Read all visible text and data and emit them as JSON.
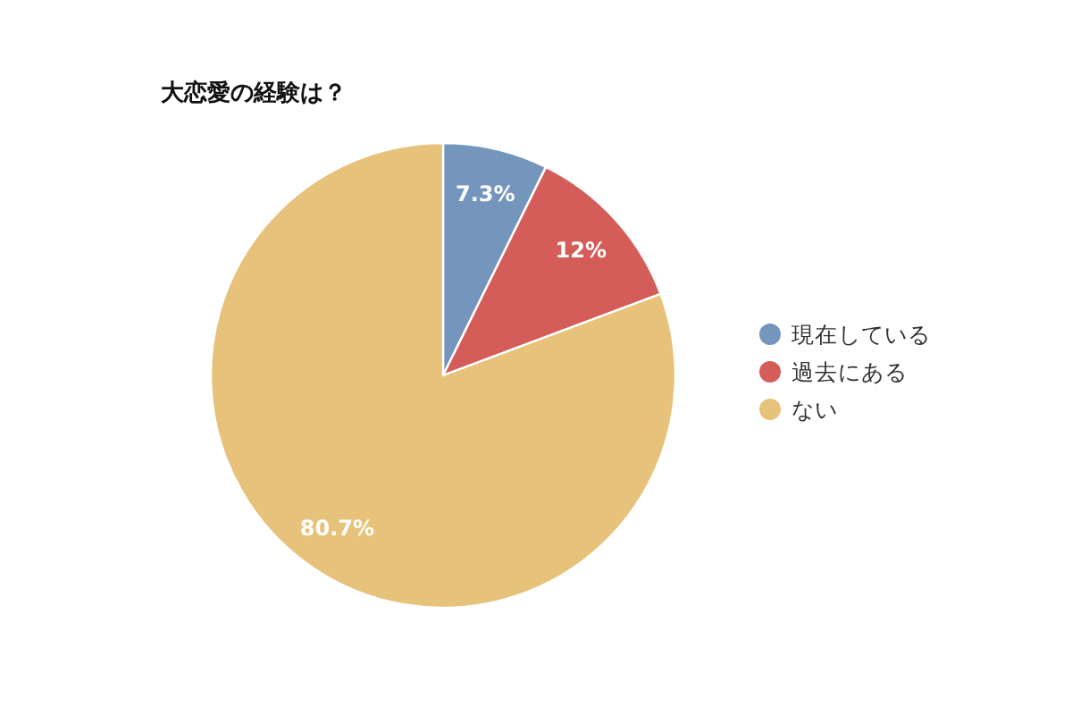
{
  "chart_data": {
    "type": "pie",
    "title": "大恋愛の経験は？",
    "categories": [
      "現在している",
      "過去にある",
      "ない"
    ],
    "values": [
      7.3,
      12,
      80.7
    ],
    "value_labels": [
      "7.3%",
      "12%",
      "80.7%"
    ],
    "colors": [
      "#7496bd",
      "#d45d5a",
      "#e6c27a"
    ],
    "legend": "right"
  }
}
